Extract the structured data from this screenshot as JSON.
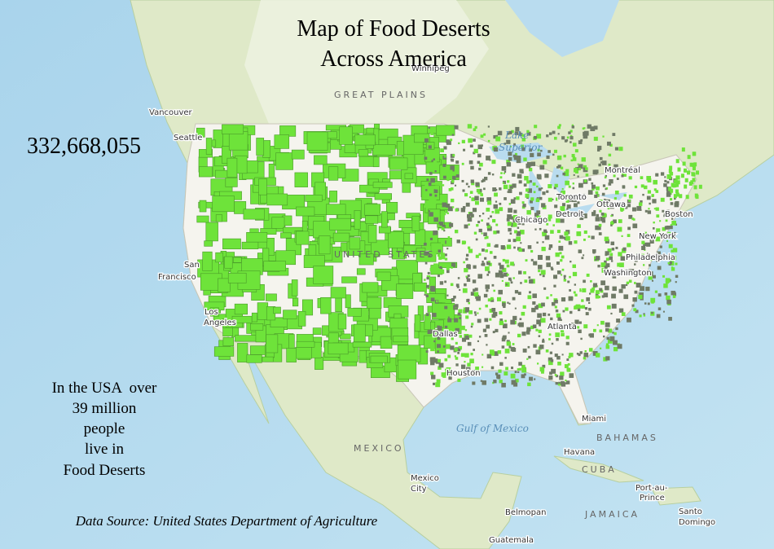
{
  "title_lines": [
    "Map of Food Deserts",
    "Across America"
  ],
  "population": "332,668,055",
  "description_lines": [
    "In the USA  over",
    "39 million",
    "people",
    "live in",
    "Food Deserts"
  ],
  "source": "Data Source: United States Department of Agriculture",
  "map_labels": [
    {
      "text": "Vancouver",
      "kind": "city"
    },
    {
      "text": "Seattle",
      "kind": "city"
    },
    {
      "text": "San",
      "kind": "city"
    },
    {
      "text": "Francisco",
      "kind": "city"
    },
    {
      "text": "Los",
      "kind": "city"
    },
    {
      "text": "Angeles",
      "kind": "city"
    },
    {
      "text": "Montréal",
      "kind": "city"
    },
    {
      "text": "Toronto",
      "kind": "city"
    },
    {
      "text": "Ottawa",
      "kind": "city"
    },
    {
      "text": "Detroit",
      "kind": "city"
    },
    {
      "text": "Chicago",
      "kind": "city"
    },
    {
      "text": "Boston",
      "kind": "city"
    },
    {
      "text": "New York",
      "kind": "city"
    },
    {
      "text": "Philadelphia",
      "kind": "city"
    },
    {
      "text": "Washington",
      "kind": "city"
    },
    {
      "text": "Atlanta",
      "kind": "city"
    },
    {
      "text": "Dallas",
      "kind": "city"
    },
    {
      "text": "Houston",
      "kind": "city"
    },
    {
      "text": "Miami",
      "kind": "city"
    },
    {
      "text": "Havana",
      "kind": "city"
    },
    {
      "text": "Mexico",
      "kind": "city"
    },
    {
      "text": "City",
      "kind": "city"
    },
    {
      "text": "Belmopan",
      "kind": "city"
    },
    {
      "text": "Guatemala",
      "kind": "city"
    },
    {
      "text": "Port-au-",
      "kind": "city"
    },
    {
      "text": "Prince",
      "kind": "city"
    },
    {
      "text": "Santo",
      "kind": "city"
    },
    {
      "text": "Domingo",
      "kind": "city"
    },
    {
      "text": "Winnipeg",
      "kind": "city"
    },
    {
      "text": "UNITED STATES",
      "kind": "region"
    },
    {
      "text": "MEXICO",
      "kind": "region"
    },
    {
      "text": "BAHAMAS",
      "kind": "region"
    },
    {
      "text": "CUBA",
      "kind": "region"
    },
    {
      "text": "JAMAICA",
      "kind": "region"
    },
    {
      "text": "GREAT PLAINS",
      "kind": "region"
    },
    {
      "text": "Gulf of Mexico",
      "kind": "water"
    },
    {
      "text": "Lake",
      "kind": "water"
    },
    {
      "text": "Superior",
      "kind": "water"
    }
  ]
}
